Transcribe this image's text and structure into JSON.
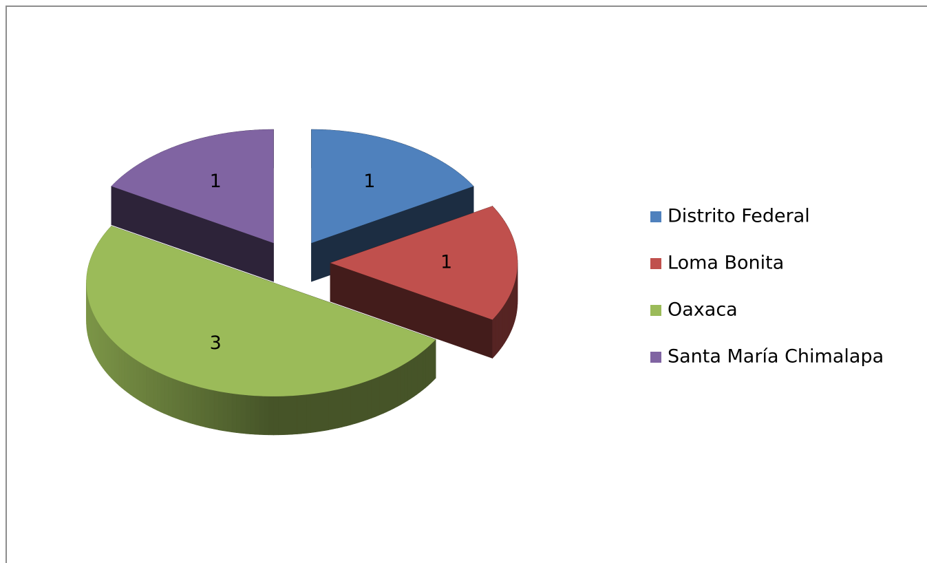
{
  "chart_data": {
    "type": "pie",
    "categories": [
      "Distrito Federal",
      "Loma Bonita",
      "Oaxaca",
      "Santa María Chimalapa"
    ],
    "values": [
      1,
      1,
      3,
      1
    ],
    "colors": [
      "#4f81bd",
      "#c0504d",
      "#9bbb59",
      "#8064a2"
    ],
    "legend": "right"
  }
}
